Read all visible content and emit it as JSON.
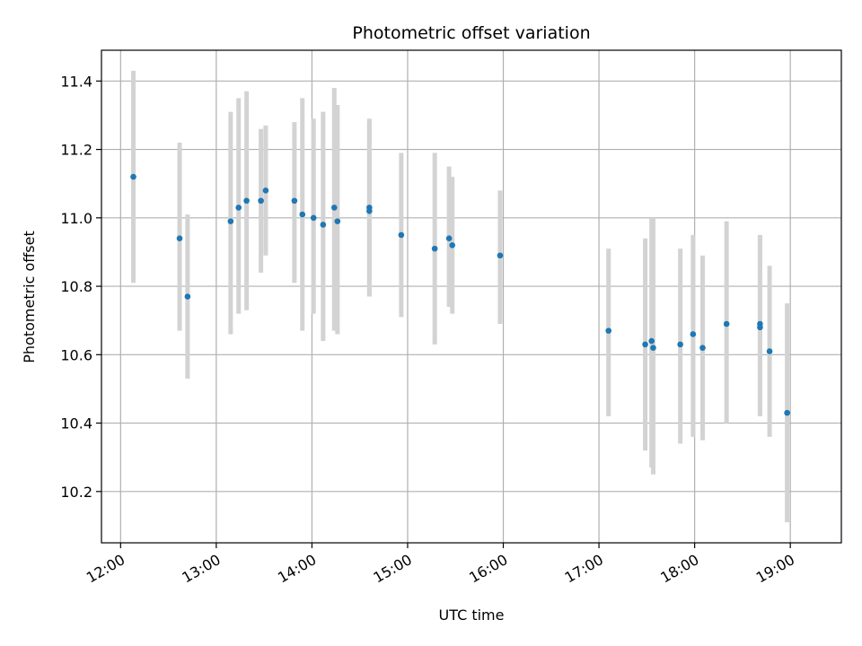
{
  "chart_data": {
    "type": "scatter",
    "title": "Photometric offset variation",
    "xlabel": "UTC time",
    "ylabel": "Photometric offset",
    "x_ticks": [
      "12:00",
      "13:00",
      "14:00",
      "15:00",
      "16:00",
      "17:00",
      "18:00",
      "19:00"
    ],
    "y_ticks": [
      "10.2",
      "10.4",
      "10.6",
      "10.8",
      "11.0",
      "11.2",
      "11.4"
    ],
    "xlim": [
      "11:48",
      "19:32"
    ],
    "ylim": [
      10.05,
      11.49
    ],
    "grid": true,
    "colors": {
      "point": "#1f77b4",
      "errorbar": "#d3d3d3",
      "grid": "#b0b0b0"
    },
    "series": [
      {
        "points": [
          {
            "x": "12:08",
            "y": 11.12,
            "low": 10.81,
            "high": 11.43
          },
          {
            "x": "12:37",
            "y": 10.94,
            "low": 10.67,
            "high": 11.22
          },
          {
            "x": "12:42",
            "y": 10.77,
            "low": 10.53,
            "high": 11.01
          },
          {
            "x": "13:09",
            "y": 10.99,
            "low": 10.66,
            "high": 11.31
          },
          {
            "x": "13:14",
            "y": 11.03,
            "low": 10.72,
            "high": 11.35
          },
          {
            "x": "13:19",
            "y": 11.05,
            "low": 10.73,
            "high": 11.37
          },
          {
            "x": "13:28",
            "y": 11.05,
            "low": 10.84,
            "high": 11.26
          },
          {
            "x": "13:31",
            "y": 11.08,
            "low": 10.89,
            "high": 11.27
          },
          {
            "x": "13:49",
            "y": 11.05,
            "low": 10.81,
            "high": 11.28
          },
          {
            "x": "13:54",
            "y": 11.01,
            "low": 10.67,
            "high": 11.35
          },
          {
            "x": "14:01",
            "y": 11.0,
            "low": 10.72,
            "high": 11.29
          },
          {
            "x": "14:07",
            "y": 10.98,
            "low": 10.64,
            "high": 11.31
          },
          {
            "x": "14:14",
            "y": 11.03,
            "low": 10.67,
            "high": 11.38
          },
          {
            "x": "14:16",
            "y": 10.99,
            "low": 10.66,
            "high": 11.33
          },
          {
            "x": "14:36",
            "y": 11.03,
            "low": 10.77,
            "high": 11.29
          },
          {
            "x": "14:36",
            "y": 11.02,
            "low": 10.77,
            "high": 11.28
          },
          {
            "x": "14:56",
            "y": 10.95,
            "low": 10.71,
            "high": 11.19
          },
          {
            "x": "15:17",
            "y": 10.91,
            "low": 10.63,
            "high": 11.19
          },
          {
            "x": "15:26",
            "y": 10.94,
            "low": 10.74,
            "high": 11.15
          },
          {
            "x": "15:28",
            "y": 10.92,
            "low": 10.72,
            "high": 11.12
          },
          {
            "x": "15:58",
            "y": 10.89,
            "low": 10.69,
            "high": 11.08
          },
          {
            "x": "17:06",
            "y": 10.67,
            "low": 10.42,
            "high": 10.91
          },
          {
            "x": "17:29",
            "y": 10.63,
            "low": 10.32,
            "high": 10.94
          },
          {
            "x": "17:33",
            "y": 10.64,
            "low": 10.27,
            "high": 11.0
          },
          {
            "x": "17:34",
            "y": 10.62,
            "low": 10.25,
            "high": 11.0
          },
          {
            "x": "17:51",
            "y": 10.63,
            "low": 10.34,
            "high": 10.91
          },
          {
            "x": "17:59",
            "y": 10.66,
            "low": 10.36,
            "high": 10.95
          },
          {
            "x": "18:05",
            "y": 10.62,
            "low": 10.35,
            "high": 10.89
          },
          {
            "x": "18:20",
            "y": 10.69,
            "low": 10.4,
            "high": 10.99
          },
          {
            "x": "18:41",
            "y": 10.69,
            "low": 10.42,
            "high": 10.95
          },
          {
            "x": "18:41",
            "y": 10.68,
            "low": 10.42,
            "high": 10.95
          },
          {
            "x": "18:47",
            "y": 10.61,
            "low": 10.36,
            "high": 10.86
          },
          {
            "x": "18:58",
            "y": 10.43,
            "low": 10.11,
            "high": 10.75
          }
        ]
      }
    ]
  }
}
